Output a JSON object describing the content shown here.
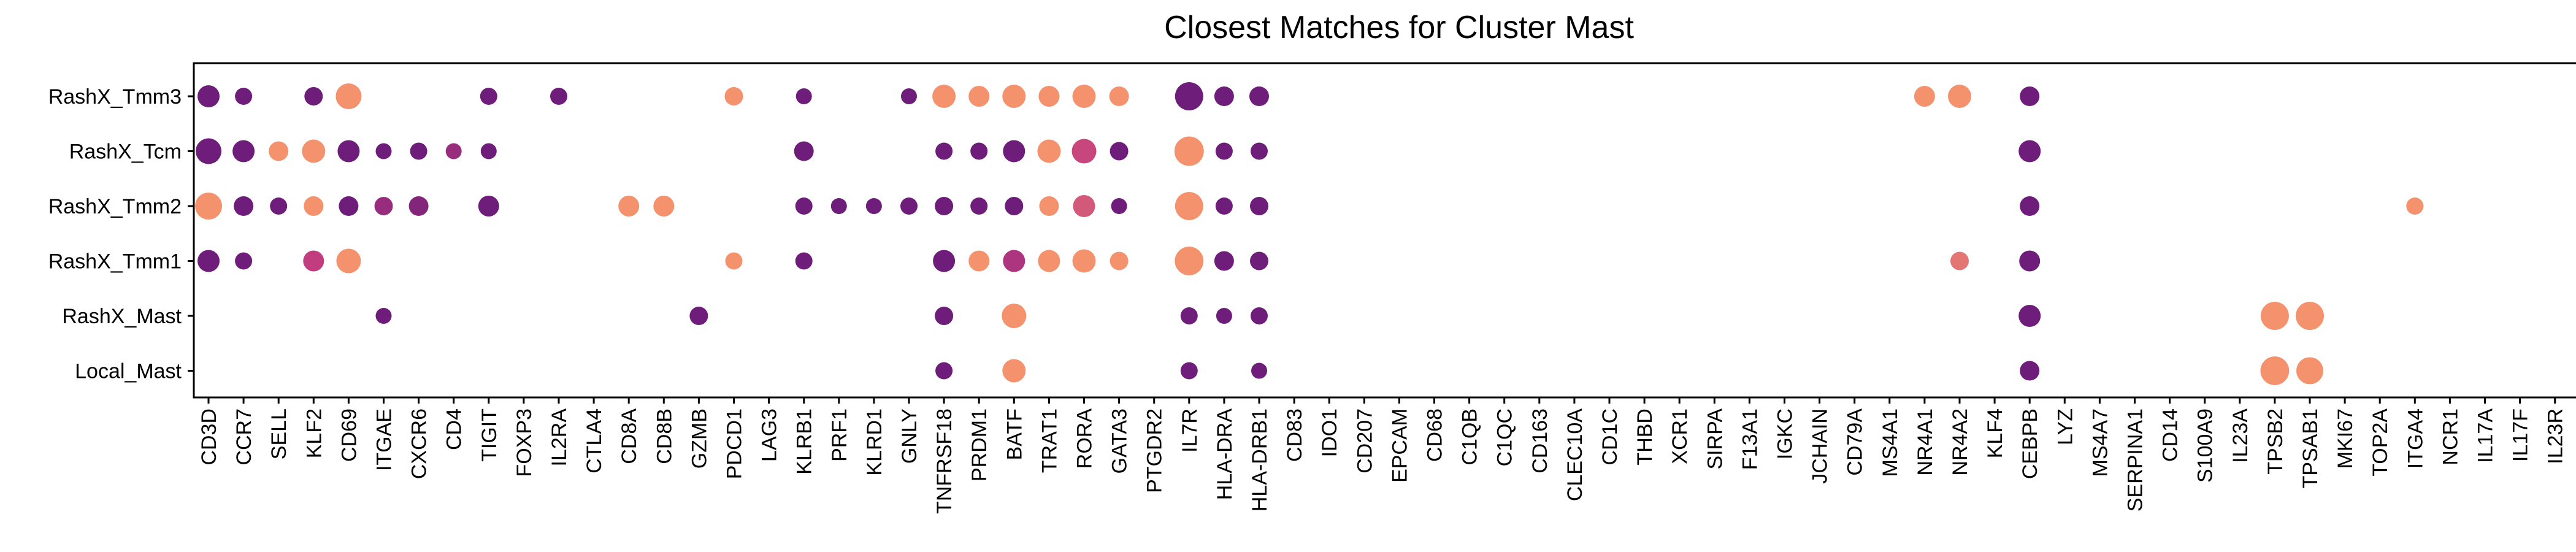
{
  "chart_data": {
    "type": "dotplot",
    "title": "Closest Matches for Cluster Mast",
    "xlabel": "",
    "ylabel": "",
    "grid": false,
    "legend": "none",
    "genes": [
      "CD3D",
      "CCR7",
      "SELL",
      "KLF2",
      "CD69",
      "ITGAE",
      "CXCR6",
      "CD4",
      "TIGIT",
      "FOXP3",
      "IL2RA",
      "CTLA4",
      "CD8A",
      "CD8B",
      "GZMB",
      "PDCD1",
      "LAG3",
      "KLRB1",
      "PRF1",
      "KLRD1",
      "GNLY",
      "TNFRSF18",
      "PRDM1",
      "BATF",
      "TRAT1",
      "RORA",
      "GATA3",
      "PTGDR2",
      "IL7R",
      "HLA-DRA",
      "HLA-DRB1",
      "CD83",
      "IDO1",
      "CD207",
      "EPCAM",
      "CD68",
      "C1QB",
      "C1QC",
      "CD163",
      "CLEC10A",
      "CD1C",
      "THBD",
      "XCR1",
      "SIRPA",
      "F13A1",
      "IGKC",
      "JCHAIN",
      "CD79A",
      "MS4A1",
      "NR4A1",
      "NR4A2",
      "KLF4",
      "CEBPB",
      "LYZ",
      "MS4A7",
      "SERPINA1",
      "CD14",
      "S100A9",
      "IL23A",
      "TPSB2",
      "TPSAB1",
      "MKI67",
      "TOP2A",
      "ITGA4",
      "NCR1",
      "IL17A",
      "IL17F",
      "IL23R"
    ],
    "clusters": [
      "RashX_Tmm3",
      "RashX_Tcm",
      "RashX_Tmm2",
      "RashX_Tmm1",
      "RashX_Mast",
      "Local_Mast"
    ],
    "size_note": "size = fraction of cells expressing (0-1); expr = scaled mean expression (0-1)",
    "color_scale": {
      "low": "#5a157a",
      "mid": "#c23d80",
      "high": "#f99b6b"
    },
    "points": [
      {
        "cluster": "RashX_Tmm3",
        "gene": "CD3D",
        "size": 0.45,
        "expr": 0.1
      },
      {
        "cluster": "RashX_Tmm3",
        "gene": "CCR7",
        "size": 0.25,
        "expr": 0.1
      },
      {
        "cluster": "RashX_Tmm3",
        "gene": "KLF2",
        "size": 0.3,
        "expr": 0.1
      },
      {
        "cluster": "RashX_Tmm3",
        "gene": "CD69",
        "size": 0.6,
        "expr": 0.95
      },
      {
        "cluster": "RashX_Tmm3",
        "gene": "TIGIT",
        "size": 0.25,
        "expr": 0.1
      },
      {
        "cluster": "RashX_Tmm3",
        "gene": "IL2RA",
        "size": 0.25,
        "expr": 0.1
      },
      {
        "cluster": "RashX_Tmm3",
        "gene": "PDCD1",
        "size": 0.3,
        "expr": 0.95
      },
      {
        "cluster": "RashX_Tmm3",
        "gene": "KLRB1",
        "size": 0.2,
        "expr": 0.1
      },
      {
        "cluster": "RashX_Tmm3",
        "gene": "GNLY",
        "size": 0.2,
        "expr": 0.1
      },
      {
        "cluster": "RashX_Tmm3",
        "gene": "TNFRSF18",
        "size": 0.5,
        "expr": 0.95
      },
      {
        "cluster": "RashX_Tmm3",
        "gene": "PRDM1",
        "size": 0.4,
        "expr": 0.95
      },
      {
        "cluster": "RashX_Tmm3",
        "gene": "BATF",
        "size": 0.5,
        "expr": 0.95
      },
      {
        "cluster": "RashX_Tmm3",
        "gene": "TRAT1",
        "size": 0.4,
        "expr": 0.95
      },
      {
        "cluster": "RashX_Tmm3",
        "gene": "RORA",
        "size": 0.5,
        "expr": 0.95
      },
      {
        "cluster": "RashX_Tmm3",
        "gene": "GATA3",
        "size": 0.35,
        "expr": 0.95
      },
      {
        "cluster": "RashX_Tmm3",
        "gene": "IL7R",
        "size": 0.7,
        "expr": 0.1
      },
      {
        "cluster": "RashX_Tmm3",
        "gene": "HLA-DRA",
        "size": 0.35,
        "expr": 0.1
      },
      {
        "cluster": "RashX_Tmm3",
        "gene": "HLA-DRB1",
        "size": 0.35,
        "expr": 0.1
      },
      {
        "cluster": "RashX_Tmm3",
        "gene": "NR4A1",
        "size": 0.4,
        "expr": 0.95
      },
      {
        "cluster": "RashX_Tmm3",
        "gene": "NR4A2",
        "size": 0.5,
        "expr": 0.95
      },
      {
        "cluster": "RashX_Tmm3",
        "gene": "CEBPB",
        "size": 0.35,
        "expr": 0.1
      },
      {
        "cluster": "RashX_Tcm",
        "gene": "CD3D",
        "size": 0.6,
        "expr": 0.1
      },
      {
        "cluster": "RashX_Tcm",
        "gene": "CCR7",
        "size": 0.45,
        "expr": 0.1
      },
      {
        "cluster": "RashX_Tcm",
        "gene": "SELL",
        "size": 0.35,
        "expr": 0.95
      },
      {
        "cluster": "RashX_Tcm",
        "gene": "KLF2",
        "size": 0.5,
        "expr": 0.95
      },
      {
        "cluster": "RashX_Tcm",
        "gene": "CD69",
        "size": 0.45,
        "expr": 0.1
      },
      {
        "cluster": "RashX_Tcm",
        "gene": "ITGAE",
        "size": 0.2,
        "expr": 0.1
      },
      {
        "cluster": "RashX_Tcm",
        "gene": "CXCR6",
        "size": 0.25,
        "expr": 0.1
      },
      {
        "cluster": "RashX_Tcm",
        "gene": "CD4",
        "size": 0.2,
        "expr": 0.3
      },
      {
        "cluster": "RashX_Tcm",
        "gene": "TIGIT",
        "size": 0.2,
        "expr": 0.1
      },
      {
        "cluster": "RashX_Tcm",
        "gene": "KLRB1",
        "size": 0.35,
        "expr": 0.1
      },
      {
        "cluster": "RashX_Tcm",
        "gene": "TNFRSF18",
        "size": 0.25,
        "expr": 0.1
      },
      {
        "cluster": "RashX_Tcm",
        "gene": "PRDM1",
        "size": 0.25,
        "expr": 0.1
      },
      {
        "cluster": "RashX_Tcm",
        "gene": "BATF",
        "size": 0.45,
        "expr": 0.1
      },
      {
        "cluster": "RashX_Tcm",
        "gene": "TRAT1",
        "size": 0.5,
        "expr": 0.95
      },
      {
        "cluster": "RashX_Tcm",
        "gene": "RORA",
        "size": 0.55,
        "expr": 0.55
      },
      {
        "cluster": "RashX_Tcm",
        "gene": "GATA3",
        "size": 0.3,
        "expr": 0.1
      },
      {
        "cluster": "RashX_Tcm",
        "gene": "IL7R",
        "size": 0.75,
        "expr": 0.95
      },
      {
        "cluster": "RashX_Tcm",
        "gene": "HLA-DRA",
        "size": 0.25,
        "expr": 0.1
      },
      {
        "cluster": "RashX_Tcm",
        "gene": "HLA-DRB1",
        "size": 0.25,
        "expr": 0.1
      },
      {
        "cluster": "RashX_Tcm",
        "gene": "CEBPB",
        "size": 0.45,
        "expr": 0.1
      },
      {
        "cluster": "RashX_Tmm2",
        "gene": "CD3D",
        "size": 0.65,
        "expr": 0.95
      },
      {
        "cluster": "RashX_Tmm2",
        "gene": "CCR7",
        "size": 0.35,
        "expr": 0.1
      },
      {
        "cluster": "RashX_Tmm2",
        "gene": "SELL",
        "size": 0.25,
        "expr": 0.1
      },
      {
        "cluster": "RashX_Tmm2",
        "gene": "KLF2",
        "size": 0.35,
        "expr": 0.95
      },
      {
        "cluster": "RashX_Tmm2",
        "gene": "CD69",
        "size": 0.35,
        "expr": 0.1
      },
      {
        "cluster": "RashX_Tmm2",
        "gene": "ITGAE",
        "size": 0.3,
        "expr": 0.3
      },
      {
        "cluster": "RashX_Tmm2",
        "gene": "CXCR6",
        "size": 0.35,
        "expr": 0.2
      },
      {
        "cluster": "RashX_Tmm2",
        "gene": "TIGIT",
        "size": 0.4,
        "expr": 0.1
      },
      {
        "cluster": "RashX_Tmm2",
        "gene": "CD8A",
        "size": 0.4,
        "expr": 0.95
      },
      {
        "cluster": "RashX_Tmm2",
        "gene": "CD8B",
        "size": 0.4,
        "expr": 0.95
      },
      {
        "cluster": "RashX_Tmm2",
        "gene": "KLRB1",
        "size": 0.25,
        "expr": 0.1
      },
      {
        "cluster": "RashX_Tmm2",
        "gene": "PRF1",
        "size": 0.2,
        "expr": 0.1
      },
      {
        "cluster": "RashX_Tmm2",
        "gene": "KLRD1",
        "size": 0.2,
        "expr": 0.1
      },
      {
        "cluster": "RashX_Tmm2",
        "gene": "GNLY",
        "size": 0.25,
        "expr": 0.1
      },
      {
        "cluster": "RashX_Tmm2",
        "gene": "TNFRSF18",
        "size": 0.3,
        "expr": 0.1
      },
      {
        "cluster": "RashX_Tmm2",
        "gene": "PRDM1",
        "size": 0.25,
        "expr": 0.1
      },
      {
        "cluster": "RashX_Tmm2",
        "gene": "BATF",
        "size": 0.3,
        "expr": 0.1
      },
      {
        "cluster": "RashX_Tmm2",
        "gene": "TRAT1",
        "size": 0.35,
        "expr": 0.95
      },
      {
        "cluster": "RashX_Tmm2",
        "gene": "RORA",
        "size": 0.45,
        "expr": 0.65
      },
      {
        "cluster": "RashX_Tmm2",
        "gene": "GATA3",
        "size": 0.2,
        "expr": 0.1
      },
      {
        "cluster": "RashX_Tmm2",
        "gene": "IL7R",
        "size": 0.7,
        "expr": 0.95
      },
      {
        "cluster": "RashX_Tmm2",
        "gene": "HLA-DRA",
        "size": 0.25,
        "expr": 0.1
      },
      {
        "cluster": "RashX_Tmm2",
        "gene": "HLA-DRB1",
        "size": 0.3,
        "expr": 0.1
      },
      {
        "cluster": "RashX_Tmm2",
        "gene": "CEBPB",
        "size": 0.35,
        "expr": 0.1
      },
      {
        "cluster": "RashX_Tmm2",
        "gene": "ITGA4",
        "size": 0.25,
        "expr": 0.95
      },
      {
        "cluster": "RashX_Tmm1",
        "gene": "CD3D",
        "size": 0.45,
        "expr": 0.1
      },
      {
        "cluster": "RashX_Tmm1",
        "gene": "CCR7",
        "size": 0.25,
        "expr": 0.1
      },
      {
        "cluster": "RashX_Tmm1",
        "gene": "KLF2",
        "size": 0.4,
        "expr": 0.5
      },
      {
        "cluster": "RashX_Tmm1",
        "gene": "CD69",
        "size": 0.55,
        "expr": 0.95
      },
      {
        "cluster": "RashX_Tmm1",
        "gene": "PDCD1",
        "size": 0.25,
        "expr": 0.95
      },
      {
        "cluster": "RashX_Tmm1",
        "gene": "KLRB1",
        "size": 0.25,
        "expr": 0.1
      },
      {
        "cluster": "RashX_Tmm1",
        "gene": "TNFRSF18",
        "size": 0.45,
        "expr": 0.1
      },
      {
        "cluster": "RashX_Tmm1",
        "gene": "PRDM1",
        "size": 0.4,
        "expr": 0.95
      },
      {
        "cluster": "RashX_Tmm1",
        "gene": "BATF",
        "size": 0.45,
        "expr": 0.4
      },
      {
        "cluster": "RashX_Tmm1",
        "gene": "TRAT1",
        "size": 0.45,
        "expr": 0.95
      },
      {
        "cluster": "RashX_Tmm1",
        "gene": "RORA",
        "size": 0.5,
        "expr": 0.95
      },
      {
        "cluster": "RashX_Tmm1",
        "gene": "GATA3",
        "size": 0.3,
        "expr": 0.95
      },
      {
        "cluster": "RashX_Tmm1",
        "gene": "IL7R",
        "size": 0.72,
        "expr": 0.95
      },
      {
        "cluster": "RashX_Tmm1",
        "gene": "HLA-DRA",
        "size": 0.35,
        "expr": 0.1
      },
      {
        "cluster": "RashX_Tmm1",
        "gene": "HLA-DRB1",
        "size": 0.3,
        "expr": 0.1
      },
      {
        "cluster": "RashX_Tmm1",
        "gene": "NR4A2",
        "size": 0.3,
        "expr": 0.8
      },
      {
        "cluster": "RashX_Tmm1",
        "gene": "CEBPB",
        "size": 0.4,
        "expr": 0.1
      },
      {
        "cluster": "RashX_Mast",
        "gene": "ITGAE",
        "size": 0.2,
        "expr": 0.1
      },
      {
        "cluster": "RashX_Mast",
        "gene": "GZMB",
        "size": 0.3,
        "expr": 0.1
      },
      {
        "cluster": "RashX_Mast",
        "gene": "TNFRSF18",
        "size": 0.3,
        "expr": 0.1
      },
      {
        "cluster": "RashX_Mast",
        "gene": "BATF",
        "size": 0.55,
        "expr": 0.95
      },
      {
        "cluster": "RashX_Mast",
        "gene": "IL7R",
        "size": 0.25,
        "expr": 0.1
      },
      {
        "cluster": "RashX_Mast",
        "gene": "HLA-DRA",
        "size": 0.2,
        "expr": 0.1
      },
      {
        "cluster": "RashX_Mast",
        "gene": "HLA-DRB1",
        "size": 0.25,
        "expr": 0.1
      },
      {
        "cluster": "RashX_Mast",
        "gene": "CEBPB",
        "size": 0.45,
        "expr": 0.1
      },
      {
        "cluster": "RashX_Mast",
        "gene": "TPSB2",
        "size": 0.7,
        "expr": 0.95
      },
      {
        "cluster": "RashX_Mast",
        "gene": "TPSAB1",
        "size": 0.7,
        "expr": 0.95
      },
      {
        "cluster": "Local_Mast",
        "gene": "TNFRSF18",
        "size": 0.25,
        "expr": 0.1
      },
      {
        "cluster": "Local_Mast",
        "gene": "BATF",
        "size": 0.5,
        "expr": 0.95
      },
      {
        "cluster": "Local_Mast",
        "gene": "IL7R",
        "size": 0.25,
        "expr": 0.1
      },
      {
        "cluster": "Local_Mast",
        "gene": "HLA-DRB1",
        "size": 0.2,
        "expr": 0.1
      },
      {
        "cluster": "Local_Mast",
        "gene": "CEBPB",
        "size": 0.35,
        "expr": 0.1
      },
      {
        "cluster": "Local_Mast",
        "gene": "TPSB2",
        "size": 0.72,
        "expr": 0.95
      },
      {
        "cluster": "Local_Mast",
        "gene": "TPSAB1",
        "size": 0.65,
        "expr": 0.95
      }
    ]
  }
}
